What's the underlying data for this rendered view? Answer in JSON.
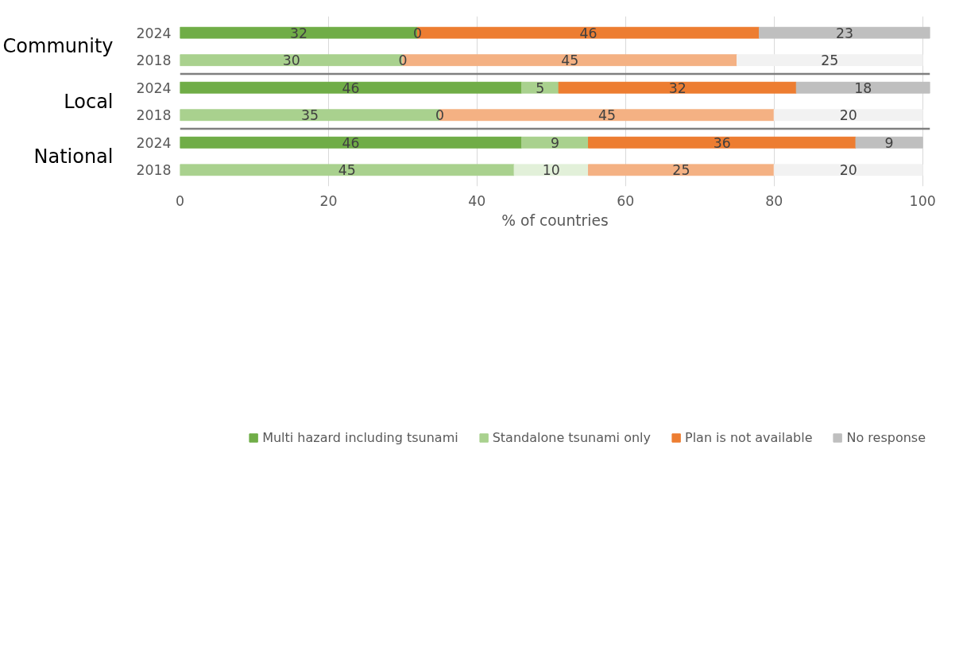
{
  "chart_data": {
    "type": "bar",
    "orientation": "horizontal",
    "stacked": true,
    "xlabel": "% of countries",
    "categories": [
      "2024",
      "2018",
      "2024",
      "2018",
      "2024",
      "2018"
    ],
    "annotations": [
      "Community",
      "Local",
      "National"
    ],
    "series": [
      {
        "name": "Multi hazard including tsunami",
        "color": "#70ad47",
        "colors": [
          null,
          "#a9d18e",
          null,
          "#a9d18e",
          null,
          "#a9d18e"
        ],
        "values": [
          32,
          30,
          46,
          35,
          46,
          45
        ]
      },
      {
        "name": "Standalone tsunami only",
        "color": "#a9d18e",
        "colors": [
          null,
          "#e2f0d9",
          null,
          "#e2f0d9",
          null,
          "#e2f0d9"
        ],
        "values": [
          0,
          0,
          5,
          0,
          9,
          10
        ]
      },
      {
        "name": "Plan is not available",
        "color": "#ed7d31",
        "colors": [
          null,
          "#f4b183",
          null,
          "#f4b183",
          null,
          "#f4b183"
        ],
        "values": [
          46,
          45,
          32,
          45,
          36,
          25
        ]
      },
      {
        "name": "No response",
        "color": "#bfbfbf",
        "colors": [
          null,
          "#f2f2f2",
          null,
          "#f2f2f2",
          null,
          "#f2f2f2"
        ],
        "values": [
          23,
          25,
          18,
          20,
          9,
          20
        ]
      }
    ],
    "xlim": [
      0,
      101
    ],
    "xticks": [
      0,
      20,
      40,
      60,
      80,
      100
    ],
    "grid": "x",
    "legend": "bottom",
    "data_labels": true
  }
}
